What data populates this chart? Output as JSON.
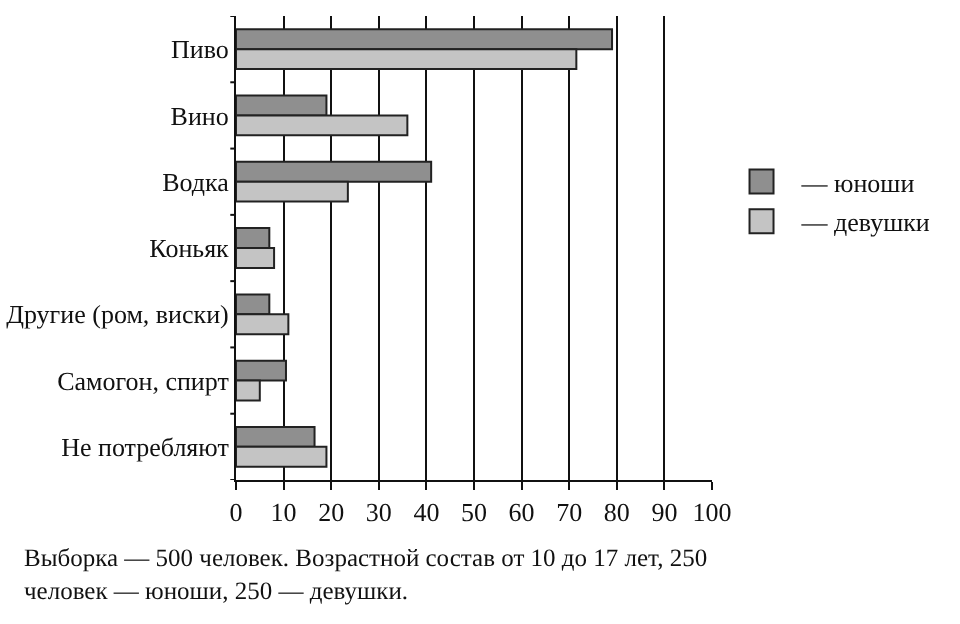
{
  "chart_data": {
    "type": "bar",
    "orientation": "horizontal",
    "categories": [
      "Пиво",
      "Вино",
      "Водка",
      "Коньяк",
      "Другие (ром, виски)",
      "Самогон, спирт",
      "Не потребляют"
    ],
    "series": [
      {
        "name": "— юноши",
        "color": "#8f8f8f",
        "values": [
          79,
          19,
          41,
          7,
          7,
          10.5,
          16.5
        ]
      },
      {
        "name": "— девушки",
        "color": "#c4c4c4",
        "values": [
          71.5,
          36,
          23.5,
          8,
          11,
          5,
          19
        ]
      }
    ],
    "xlim": [
      0,
      100
    ],
    "xticks": [
      0,
      10,
      20,
      30,
      40,
      50,
      60,
      70,
      80,
      90,
      100
    ],
    "grid": "x",
    "legend": "right",
    "annotations": [
      "Выборка — 500 человек. Возрастной состав от 10 до 17 лет, 250 человек — юноши, 250 — девушки."
    ]
  }
}
